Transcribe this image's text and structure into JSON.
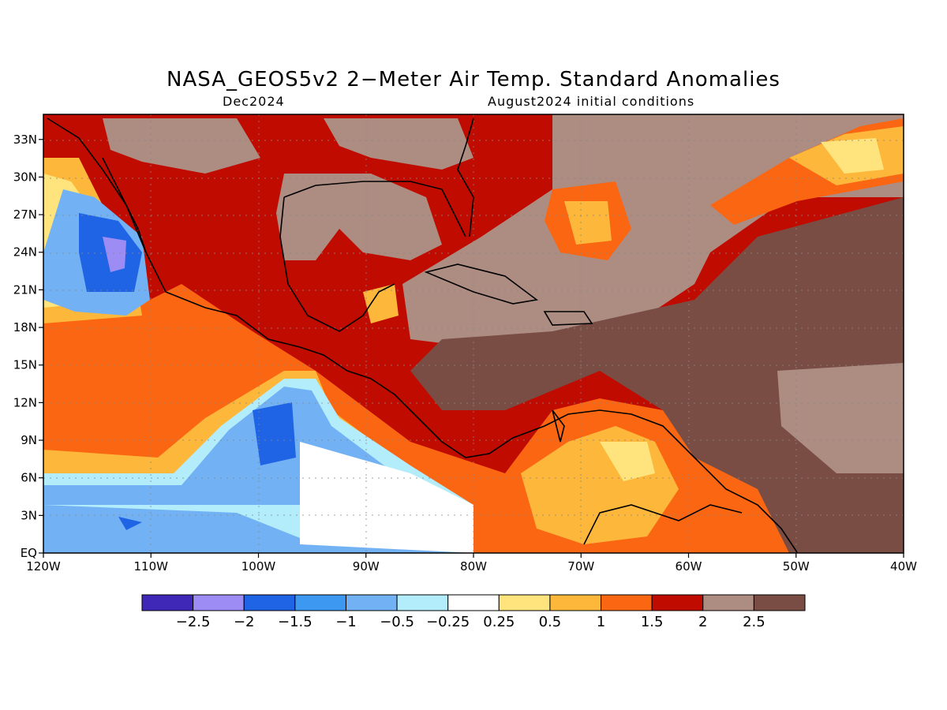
{
  "header": {
    "title": "NASA_GEOS5v2 2−Meter Air Temp. Standard Anomalies",
    "subtitle_left": "Dec2024",
    "subtitle_right": "August2024 initial conditions"
  },
  "map": {
    "lon_range": [
      -120,
      -40
    ],
    "lat_range": [
      0,
      35
    ],
    "lon_ticks": [
      "120W",
      "110W",
      "100W",
      "90W",
      "80W",
      "70W",
      "60W",
      "50W",
      "40W"
    ],
    "lat_ticks": [
      "EQ",
      "3N",
      "6N",
      "9N",
      "12N",
      "15N",
      "18N",
      "21N",
      "24N",
      "27N",
      "30N",
      "33N"
    ]
  },
  "colorbar": {
    "colors": [
      "#3f27b8",
      "#9e8cf5",
      "#2064e6",
      "#3d98f1",
      "#72b2f4",
      "#b3edfb",
      "#ffffff",
      "#ffe47d",
      "#fdb83c",
      "#fb6612",
      "#c00b00",
      "#ad8c82",
      "#7a4d44"
    ],
    "labels": [
      "−2.5",
      "−2",
      "−1.5",
      "−1",
      "−0.5",
      "−0.25",
      "0.25",
      "0.5",
      "1",
      "1.5",
      "2",
      "2.5"
    ]
  }
}
